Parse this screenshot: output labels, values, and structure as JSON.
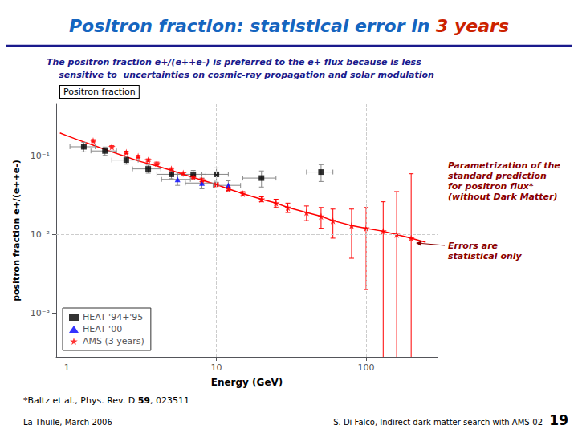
{
  "chart_data": {
    "type": "scatter",
    "title": [
      {
        "text": "Positron fraction: statistical error in ",
        "color": "#1565C0"
      },
      {
        "text": "3 years",
        "color": "#CC2200"
      }
    ],
    "subtitle": [
      "The positron fraction e+/(e++e-) is preferred to the e+ flux because is less",
      "    sensitive to  uncertainties on cosmic-ray propagation and solar modulation"
    ],
    "subtitle_color": "#1a1a8c",
    "inner_label": "Positron fraction",
    "xlabel": "Energy (GeV)",
    "ylabel": "positron fraction e+/(e++e-)",
    "log": true,
    "xlim": [
      0.85,
      300
    ],
    "ylim": [
      0.00028,
      0.45
    ],
    "xticks": [
      1,
      10,
      100
    ],
    "yticks": [
      {
        "value": 0.001,
        "label": "10⁻³"
      },
      {
        "value": 0.01,
        "label": "10⁻²"
      },
      {
        "value": 0.1,
        "label": "10⁻¹"
      }
    ],
    "grid": true,
    "legend": "lower left",
    "series": [
      {
        "type": "line",
        "color": "#ff0000",
        "x": [
          0.9,
          1.0,
          1.2,
          1.5,
          2.0,
          2.5,
          3.0,
          4.0,
          5.0,
          6.0,
          7.0,
          8.0,
          10.0,
          12.0,
          15.0,
          20.0,
          25.0,
          30.0,
          40.0,
          50.0,
          60.0,
          80.0,
          100.0,
          130.0,
          160.0,
          200.0,
          250.0
        ],
        "values": [
          0.195,
          0.18,
          0.158,
          0.136,
          0.112,
          0.097,
          0.086,
          0.074,
          0.065,
          0.058,
          0.053,
          0.049,
          0.043,
          0.038,
          0.033,
          0.028,
          0.025,
          0.022,
          0.019,
          0.017,
          0.015,
          0.013,
          0.012,
          0.011,
          0.01,
          0.009,
          0.008
        ]
      },
      {
        "name": "HEAT '94+'95",
        "type": "scatter",
        "marker": "square",
        "color": "#000000",
        "error_color": "#888888",
        "x": [
          1.3,
          1.8,
          2.5,
          3.5,
          5.0,
          7.0,
          10.0,
          20.0,
          50.0
        ],
        "values": [
          0.13,
          0.115,
          0.088,
          0.068,
          0.058,
          0.058,
          0.058,
          0.052,
          0.062
        ],
        "xerr": [
          0.25,
          0.35,
          0.5,
          0.75,
          1.0,
          1.5,
          2.0,
          5.0,
          10.0
        ],
        "yerr": [
          0.018,
          0.014,
          0.01,
          0.008,
          0.007,
          0.007,
          0.012,
          0.012,
          0.015
        ]
      },
      {
        "name": "HEAT '00",
        "type": "scatter",
        "marker": "triangle",
        "color": "#0000ff",
        "error_color": "#888888",
        "x": [
          5.5,
          8.0,
          12.0
        ],
        "values": [
          0.05,
          0.045,
          0.042
        ],
        "xerr": [
          1.2,
          1.8,
          2.5
        ],
        "yerr": [
          0.008,
          0.007,
          0.006
        ]
      },
      {
        "name": "AMS (3 years)",
        "type": "scatter",
        "marker": "star",
        "color": "#ff0000",
        "error_color": "#ff0000",
        "x": [
          1.5,
          2.0,
          2.5,
          3.0,
          3.5,
          4.0,
          5.0,
          6.0,
          7.0,
          8.0,
          10.0,
          12.0,
          15.0,
          20.0,
          25.0,
          30.0,
          40.0,
          50.0,
          60.0,
          80.0,
          100.0,
          130.0,
          160.0,
          200.0
        ],
        "values": [
          0.155,
          0.13,
          0.11,
          0.098,
          0.088,
          0.08,
          0.068,
          0.06,
          0.054,
          0.049,
          0.043,
          0.038,
          0.033,
          0.028,
          0.025,
          0.022,
          0.019,
          0.017,
          0.015,
          0.013,
          0.012,
          0.011,
          0.01,
          0.009
        ],
        "yerr_lo": [
          0.005,
          0.004,
          0.004,
          0.003,
          0.003,
          0.003,
          0.002,
          0.002,
          0.002,
          0.002,
          0.002,
          0.002,
          0.002,
          0.002,
          0.003,
          0.003,
          0.004,
          0.005,
          0.006,
          0.008,
          0.01,
          0.015,
          0.025,
          0.05
        ],
        "yerr_hi": [
          0.005,
          0.004,
          0.004,
          0.003,
          0.003,
          0.003,
          0.002,
          0.002,
          0.002,
          0.002,
          0.002,
          0.002,
          0.002,
          0.002,
          0.003,
          0.003,
          0.004,
          0.005,
          0.006,
          0.008,
          0.01,
          0.015,
          0.025,
          0.05
        ]
      }
    ],
    "annotations": [
      {
        "lines": [
          "Parametrization of the",
          "standard prediction",
          "for positron flux*",
          "(without Dark Matter)"
        ],
        "color": "#8B0000"
      },
      {
        "lines": [
          "Errors are",
          "statistical only"
        ],
        "color": "#8B0000"
      }
    ],
    "footnote": [
      "*Baltz et al., Phys. Rev. D ",
      "59",
      ", 023511"
    ],
    "footer": [
      "La Thuile, March 2006",
      "S. Di Falco, Indirect dark matter search with AMS-02",
      "19"
    ]
  }
}
